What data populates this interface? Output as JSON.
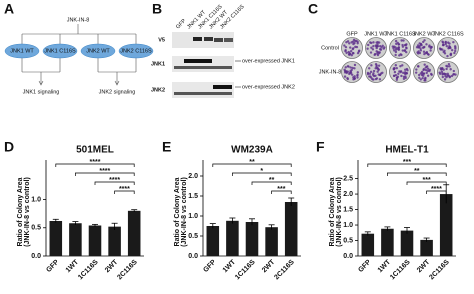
{
  "panels": {
    "a": {
      "letter": "A",
      "drug": "JNK-IN-8",
      "nodes": [
        "JNK1 WT",
        "JNK1 C116S",
        "JNK2 WT",
        "JNK2 C116S"
      ],
      "outcomes": [
        "JNK1 signaling",
        "JNK2 signaling"
      ]
    },
    "b": {
      "letter": "B",
      "lanes": [
        "GFP",
        "JNK1 WT",
        "JNK1 C116S",
        "JNK2 WT",
        "JNK2 C116S"
      ],
      "rows": [
        "V5",
        "JNK1",
        "JNK2"
      ],
      "annotations": [
        "over-expressed JNK1",
        "over-expressed JNK2"
      ]
    },
    "c": {
      "letter": "C",
      "columns": [
        "GFP",
        "JNK1 WT",
        "JNK1 C116S",
        "JNK2 WT",
        "JNK2 C116S"
      ],
      "rows": [
        "Control",
        "JNK-IN-8"
      ]
    }
  },
  "chart_data": [
    {
      "type": "bar",
      "letter": "D",
      "title": "501MEL",
      "ylabel": [
        "Ratio of Colony Area",
        "(JNK-IN-8 vs control)"
      ],
      "categories": [
        "GFP",
        "1WT",
        "1C116S",
        "2WT",
        "2C116S"
      ],
      "values": [
        0.62,
        0.58,
        0.54,
        0.52,
        0.8
      ],
      "errors": [
        0.03,
        0.03,
        0.02,
        0.06,
        0.02
      ],
      "significance": [
        "****",
        "****",
        "****",
        "****"
      ],
      "color": "#1a1a1a",
      "ylim": [
        0,
        1.7
      ],
      "yticks": [
        {
          "value": 0,
          "label": "0.0"
        },
        {
          "value": 0.5,
          "label": "0.5"
        },
        {
          "value": 1,
          "label": "1.0"
        }
      ]
    },
    {
      "type": "bar",
      "letter": "E",
      "title": "WM239A",
      "ylabel": [
        "Ratio of Colony Area",
        "(JNK-IN-8 vs control)"
      ],
      "categories": [
        "GFP",
        "1WT",
        "1C116S",
        "2WT",
        "2C116S"
      ],
      "values": [
        0.75,
        0.88,
        0.85,
        0.72,
        1.35
      ],
      "errors": [
        0.06,
        0.07,
        0.08,
        0.06,
        0.1
      ],
      "significance": [
        "**",
        "*",
        "**",
        "***"
      ],
      "color": "#1a1a1a",
      "ylim": [
        0,
        2.4
      ],
      "yticks": [
        {
          "value": 0,
          "label": "0.0"
        },
        {
          "value": 0.5,
          "label": "0.5"
        },
        {
          "value": 1,
          "label": "1.0"
        },
        {
          "value": 1.5,
          "label": "1.5"
        },
        {
          "value": 2,
          "label": "2.0"
        }
      ]
    },
    {
      "type": "bar",
      "letter": "F",
      "title": "HMEL-T1",
      "ylabel": [
        "Ratio of Colony Area",
        "(JNK-IN-8 vs control)"
      ],
      "categories": [
        "GFP",
        "1WT",
        "1C116S",
        "2WT",
        "2C116S"
      ],
      "values": [
        0.72,
        0.88,
        0.82,
        0.52,
        2.0
      ],
      "errors": [
        0.06,
        0.06,
        0.1,
        0.06,
        0.3
      ],
      "significance": [
        "***",
        "**",
        "***",
        "****"
      ],
      "color": "#1a1a1a",
      "ylim": [
        0,
        3.1
      ],
      "yticks": [
        {
          "value": 0,
          "label": "0.0"
        },
        {
          "value": 0.5,
          "label": "0.5"
        },
        {
          "value": 1,
          "label": "1.0"
        },
        {
          "value": 1.5,
          "label": "1.5"
        },
        {
          "value": 2,
          "label": "2.0"
        },
        {
          "value": 2.5,
          "label": "2.5"
        }
      ]
    }
  ]
}
